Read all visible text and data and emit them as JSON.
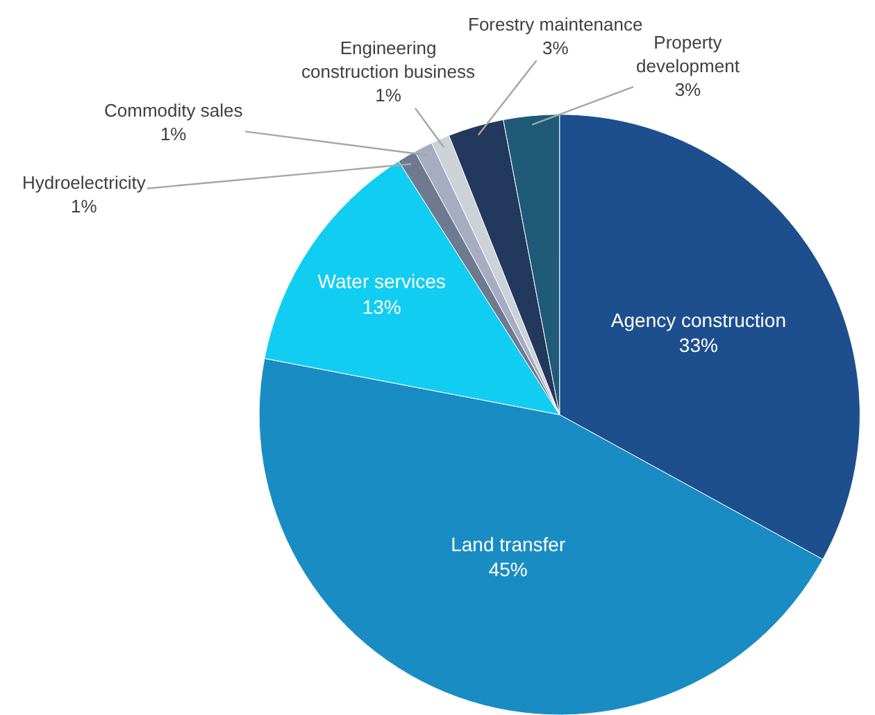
{
  "chart_data": {
    "type": "pie",
    "categories": [
      "Agency construction",
      "Land transfer",
      "Water services",
      "Hydroelectricity",
      "Commodity sales",
      "Engineering construction business",
      "Forestry maintenance",
      "Property development"
    ],
    "values": [
      33,
      45,
      13,
      1,
      1,
      1,
      3,
      3
    ],
    "value_labels": [
      "33%",
      "45%",
      "13%",
      "1%",
      "1%",
      "1%",
      "3%",
      "3%"
    ],
    "colors": [
      "#1d4f8e",
      "#1a8cc4",
      "#12cdf2",
      "#6e7a90",
      "#a6adc2",
      "#cdd1d8",
      "#22385c",
      "#1f5a78"
    ]
  }
}
